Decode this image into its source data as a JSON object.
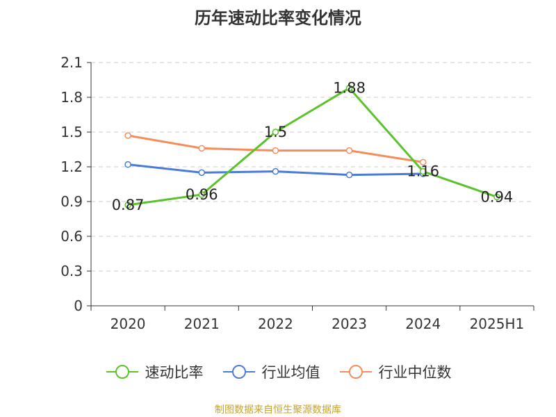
{
  "chart_data": {
    "type": "line",
    "title": "历年速动比率变化情况",
    "categories": [
      "2020",
      "2021",
      "2022",
      "2023",
      "2024",
      "2025H1"
    ],
    "ylim": [
      0,
      2.1
    ],
    "yticks": [
      "0",
      "0.3",
      "0.6",
      "0.9",
      "1.2",
      "1.5",
      "1.8",
      "2.1"
    ],
    "grid": true,
    "legend_position": "bottom",
    "series": [
      {
        "name": "速动比率",
        "color": "#5cc22b",
        "values": [
          0.87,
          0.96,
          1.5,
          1.88,
          1.16,
          0.94
        ],
        "labels": [
          "0.87",
          "0.96",
          "1.5",
          "1.88",
          "1.16",
          "0.94"
        ]
      },
      {
        "name": "行业均值",
        "color": "#4b7bd8",
        "values": [
          1.22,
          1.15,
          1.16,
          1.13,
          1.14,
          null
        ]
      },
      {
        "name": "行业中位数",
        "color": "#f58d5a",
        "values": [
          1.47,
          1.36,
          1.34,
          1.34,
          1.24,
          null
        ]
      }
    ]
  },
  "footer": {
    "source": "制图数据来自恒生聚源数据库"
  }
}
